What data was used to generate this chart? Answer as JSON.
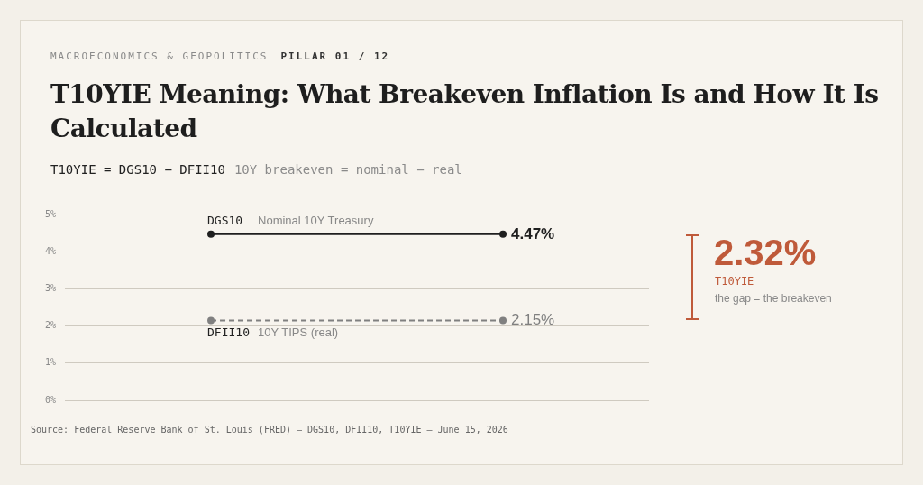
{
  "chart_data": {
    "type": "line",
    "title": "T10YIE Meaning: What Breakeven Inflation Is and How It Is Calculated",
    "subtitle": "T10YIE = DGS10 − DFII10",
    "categories": [
      null,
      null
    ],
    "series": [
      {
        "name": "DGS10",
        "color": "#1f1f1f",
        "values": [
          4.47,
          4.47
        ],
        "value_labels": [
          null,
          "4.47%"
        ],
        "line_style": "solid"
      },
      {
        "name": "DFII10",
        "color": "#808080",
        "values": [
          2.15,
          2.15
        ],
        "value_labels": [
          null,
          "2.15%"
        ],
        "line_style": "dashed"
      }
    ],
    "ylim": [
      0,
      5
    ],
    "yticks": [
      {
        "value": 0,
        "label": "0%"
      },
      {
        "value": 1,
        "label": "1%"
      },
      {
        "value": 2,
        "label": "2%"
      },
      {
        "value": 3,
        "label": "3%"
      },
      {
        "value": 4,
        "label": "4%"
      },
      {
        "value": 5,
        "label": "5%"
      }
    ],
    "grid": "y",
    "tick_labels": "y",
    "marker": "circle",
    "legend": false,
    "annotations": [
      "MACROECONOMICS & GEOPOLITICS",
      "PILLAR 01 / 12",
      "10Y breakeven = nominal − real",
      "2.32%",
      "T10YIE",
      "the gap = the breakeven",
      "Source: Federal Reserve Bank of St. Louis (FRED) — DGS10, DFII10, T10YIE — June 15, 2026",
      {
        "text": "Nominal 10Y Treasury",
        "y": 4.47
      },
      {
        "text": "10Y TIPS (real)",
        "y": 2.15
      }
    ]
  }
}
